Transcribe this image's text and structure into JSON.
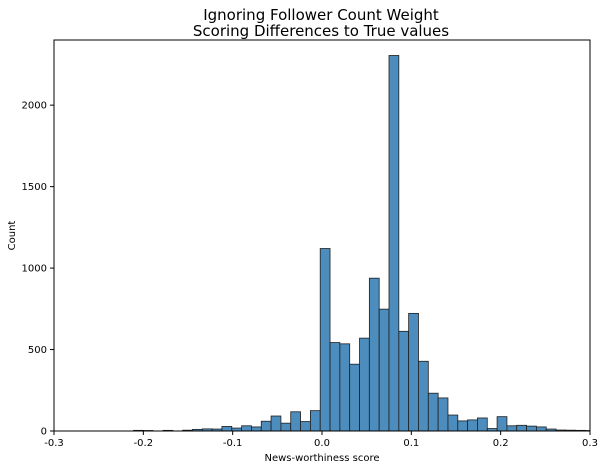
{
  "chart_data": {
    "type": "bar",
    "title_lines": [
      "Ignoring Follower Count Weight",
      "Scoring Differences to True values"
    ],
    "xlabel": "News-worthiness score",
    "ylabel": "Count",
    "xlim": [
      -0.3,
      0.3
    ],
    "ylim": [
      0,
      2400
    ],
    "x_ticks": [
      -0.3,
      -0.2,
      -0.1,
      0.0,
      0.1,
      0.2,
      0.3
    ],
    "x_tick_labels": [
      "-0.3",
      "-0.2",
      "-0.1",
      "0.0",
      "0.1",
      "0.2",
      "0.3"
    ],
    "y_ticks": [
      0,
      500,
      1000,
      1500,
      2000
    ],
    "y_tick_labels": [
      "0",
      "500",
      "1000",
      "1500",
      "2000"
    ],
    "bar_color": "#4c8dbd",
    "bar_edge_color": "#1f1f1f",
    "grid": false,
    "bins": [
      {
        "x0": -0.211,
        "x1": -0.2,
        "count": 4
      },
      {
        "x0": -0.2,
        "x1": -0.189,
        "count": 3
      },
      {
        "x0": -0.189,
        "x1": -0.178,
        "count": 0
      },
      {
        "x0": -0.178,
        "x1": -0.167,
        "count": 4
      },
      {
        "x0": -0.167,
        "x1": -0.156,
        "count": 0
      },
      {
        "x0": -0.156,
        "x1": -0.145,
        "count": 5
      },
      {
        "x0": -0.145,
        "x1": -0.134,
        "count": 10
      },
      {
        "x0": -0.134,
        "x1": -0.123,
        "count": 13
      },
      {
        "x0": -0.123,
        "x1": -0.112,
        "count": 12
      },
      {
        "x0": -0.112,
        "x1": -0.101,
        "count": 28
      },
      {
        "x0": -0.101,
        "x1": -0.09,
        "count": 18
      },
      {
        "x0": -0.09,
        "x1": -0.079,
        "count": 32
      },
      {
        "x0": -0.079,
        "x1": -0.068,
        "count": 25
      },
      {
        "x0": -0.068,
        "x1": -0.057,
        "count": 60
      },
      {
        "x0": -0.057,
        "x1": -0.046,
        "count": 92
      },
      {
        "x0": -0.046,
        "x1": -0.035,
        "count": 48
      },
      {
        "x0": -0.035,
        "x1": -0.024,
        "count": 118
      },
      {
        "x0": -0.024,
        "x1": -0.013,
        "count": 58
      },
      {
        "x0": -0.013,
        "x1": -0.002,
        "count": 125
      },
      {
        "x0": -0.002,
        "x1": 0.009,
        "count": 1120
      },
      {
        "x0": 0.009,
        "x1": 0.02,
        "count": 543
      },
      {
        "x0": 0.02,
        "x1": 0.031,
        "count": 535
      },
      {
        "x0": 0.031,
        "x1": 0.042,
        "count": 410
      },
      {
        "x0": 0.042,
        "x1": 0.053,
        "count": 570
      },
      {
        "x0": 0.053,
        "x1": 0.064,
        "count": 938
      },
      {
        "x0": 0.064,
        "x1": 0.075,
        "count": 748
      },
      {
        "x0": 0.075,
        "x1": 0.086,
        "count": 2305
      },
      {
        "x0": 0.086,
        "x1": 0.097,
        "count": 612
      },
      {
        "x0": 0.097,
        "x1": 0.108,
        "count": 722
      },
      {
        "x0": 0.108,
        "x1": 0.119,
        "count": 428
      },
      {
        "x0": 0.119,
        "x1": 0.13,
        "count": 232
      },
      {
        "x0": 0.13,
        "x1": 0.141,
        "count": 203
      },
      {
        "x0": 0.141,
        "x1": 0.152,
        "count": 98
      },
      {
        "x0": 0.152,
        "x1": 0.163,
        "count": 62
      },
      {
        "x0": 0.163,
        "x1": 0.174,
        "count": 68
      },
      {
        "x0": 0.174,
        "x1": 0.185,
        "count": 80
      },
      {
        "x0": 0.185,
        "x1": 0.196,
        "count": 15
      },
      {
        "x0": 0.196,
        "x1": 0.207,
        "count": 88
      },
      {
        "x0": 0.207,
        "x1": 0.218,
        "count": 32
      },
      {
        "x0": 0.218,
        "x1": 0.229,
        "count": 35
      },
      {
        "x0": 0.229,
        "x1": 0.24,
        "count": 30
      },
      {
        "x0": 0.24,
        "x1": 0.251,
        "count": 25
      },
      {
        "x0": 0.251,
        "x1": 0.262,
        "count": 12
      },
      {
        "x0": 0.262,
        "x1": 0.273,
        "count": 6
      },
      {
        "x0": 0.273,
        "x1": 0.284,
        "count": 5
      },
      {
        "x0": 0.284,
        "x1": 0.295,
        "count": 4
      },
      {
        "x0": 0.295,
        "x1": 0.3,
        "count": 3
      }
    ]
  }
}
